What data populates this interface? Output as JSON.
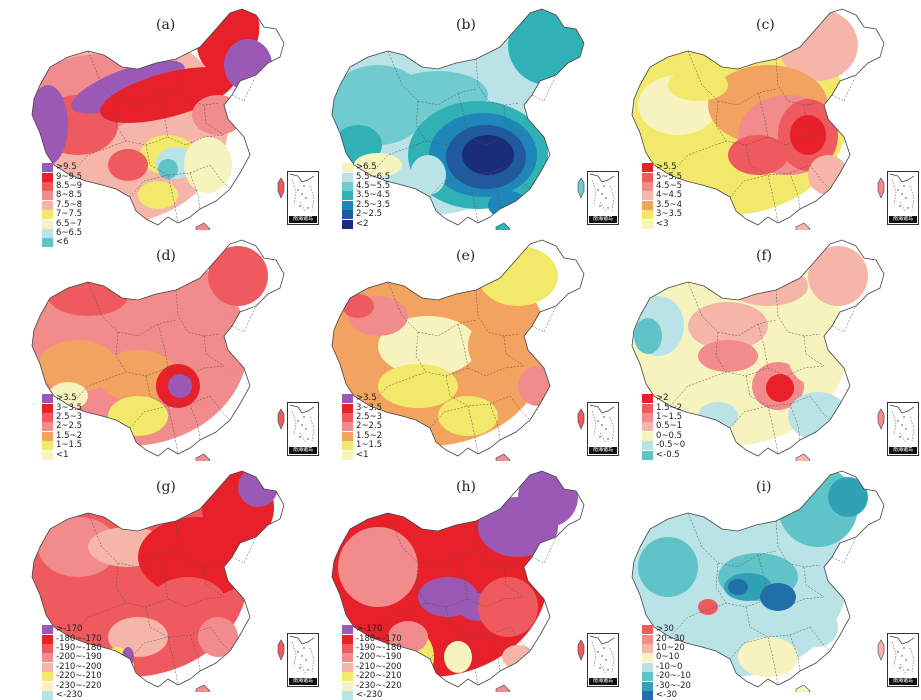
{
  "chart_data": [
    {
      "type": "heatmap",
      "panel": "(a)",
      "palette": "warm",
      "legend": [
        {
          "label": ">9.5",
          "color": "#9b59b6"
        },
        {
          "label": "9~9.5",
          "color": "#e8202a"
        },
        {
          "label": "8.5~9",
          "color": "#ef5a5f"
        },
        {
          "label": "8~8.5",
          "color": "#f28b8b"
        },
        {
          "label": "7.5~8",
          "color": "#f5b5a8"
        },
        {
          "label": "7~7.5",
          "color": "#f2e86a"
        },
        {
          "label": "6.5~7",
          "color": "#f6f3bf"
        },
        {
          "label": "6~6.5",
          "color": "#b9e3e6"
        },
        {
          "label": "<6",
          "color": "#5fc3c8"
        }
      ]
    },
    {
      "type": "heatmap",
      "panel": "(b)",
      "palette": "blue",
      "legend": [
        {
          "label": ">6.5",
          "color": "#f6f3bf"
        },
        {
          "label": "5.5~6.5",
          "color": "#b9e3e6"
        },
        {
          "label": "4.5~5.5",
          "color": "#6fcbd0"
        },
        {
          "label": "3.5~4.5",
          "color": "#2fb1b6"
        },
        {
          "label": "2.5~3.5",
          "color": "#1f86b9"
        },
        {
          "label": "2~2.5",
          "color": "#1f5a9e"
        },
        {
          "label": "<2",
          "color": "#1a2d7a"
        }
      ]
    },
    {
      "type": "heatmap",
      "panel": "(c)",
      "palette": "warm",
      "legend": [
        {
          "label": ">5.5",
          "color": "#e8202a"
        },
        {
          "label": "5~5.5",
          "color": "#ef5a5f"
        },
        {
          "label": "4.5~5",
          "color": "#f28b8b"
        },
        {
          "label": "4~4.5",
          "color": "#f5b5a8"
        },
        {
          "label": "3.5~4",
          "color": "#f2a35f"
        },
        {
          "label": "3~3.5",
          "color": "#f2e86a"
        },
        {
          "label": "<3",
          "color": "#f6f3bf"
        }
      ]
    },
    {
      "type": "heatmap",
      "panel": "(d)",
      "palette": "warm",
      "legend": [
        {
          "label": ">3.5",
          "color": "#9b59b6"
        },
        {
          "label": "3~3.5",
          "color": "#e8202a"
        },
        {
          "label": "2.5~3",
          "color": "#ef5a5f"
        },
        {
          "label": "2~2.5",
          "color": "#f28b8b"
        },
        {
          "label": "1.5~2",
          "color": "#f2a35f"
        },
        {
          "label": "1~1.5",
          "color": "#f2e86a"
        },
        {
          "label": "<1",
          "color": "#f6f3bf"
        }
      ]
    },
    {
      "type": "heatmap",
      "panel": "(e)",
      "palette": "warm",
      "legend": [
        {
          "label": ">3.5",
          "color": "#9b59b6"
        },
        {
          "label": "3~3.5",
          "color": "#e8202a"
        },
        {
          "label": "2.5~3",
          "color": "#ef5a5f"
        },
        {
          "label": "2~2.5",
          "color": "#f28b8b"
        },
        {
          "label": "1.5~2",
          "color": "#f2a35f"
        },
        {
          "label": "1~1.5",
          "color": "#f2e86a"
        },
        {
          "label": "<1",
          "color": "#f6f3bf"
        }
      ]
    },
    {
      "type": "heatmap",
      "panel": "(f)",
      "palette": "diverging",
      "legend": [
        {
          "label": ">2",
          "color": "#e8202a"
        },
        {
          "label": "1.5~2",
          "color": "#ef5a5f"
        },
        {
          "label": "1~1.5",
          "color": "#f28b8b"
        },
        {
          "label": "0.5~1",
          "color": "#f5b5a8"
        },
        {
          "label": "0~0.5",
          "color": "#f6f3bf"
        },
        {
          "label": "-0.5~0",
          "color": "#b9e3e6"
        },
        {
          "label": "<-0.5",
          "color": "#5fc3c8"
        }
      ]
    },
    {
      "type": "heatmap",
      "panel": "(g)",
      "palette": "warm",
      "legend": [
        {
          "label": ">-170",
          "color": "#9b59b6"
        },
        {
          "label": "-180~-170",
          "color": "#e8202a"
        },
        {
          "label": "-190~-180",
          "color": "#ef5a5f"
        },
        {
          "label": "-200~-190",
          "color": "#f28b8b"
        },
        {
          "label": "-210~-200",
          "color": "#f5b5a8"
        },
        {
          "label": "-220~-210",
          "color": "#f2e86a"
        },
        {
          "label": "-230~-220",
          "color": "#f6f3bf"
        },
        {
          "label": "<-230",
          "color": "#b9e3e6"
        }
      ]
    },
    {
      "type": "heatmap",
      "panel": "(h)",
      "palette": "warm",
      "legend": [
        {
          "label": ">-170",
          "color": "#9b59b6"
        },
        {
          "label": "-180~-170",
          "color": "#e8202a"
        },
        {
          "label": "-190~-180",
          "color": "#ef5a5f"
        },
        {
          "label": "-200~-190",
          "color": "#f28b8b"
        },
        {
          "label": "-210~-200",
          "color": "#f5b5a8"
        },
        {
          "label": "-220~-210",
          "color": "#f2e86a"
        },
        {
          "label": "-230~-220",
          "color": "#f6f3bf"
        },
        {
          "label": "<-230",
          "color": "#b9e3e6"
        }
      ]
    },
    {
      "type": "heatmap",
      "panel": "(i)",
      "palette": "diverging",
      "legend": [
        {
          "label": ">30",
          "color": "#ef5a5f"
        },
        {
          "label": "20~30",
          "color": "#f28b8b"
        },
        {
          "label": "10~20",
          "color": "#f5b5a8"
        },
        {
          "label": "0~10",
          "color": "#f6f3bf"
        },
        {
          "label": "-10~0",
          "color": "#b9e3e6"
        },
        {
          "label": "-20~-10",
          "color": "#5fc3c8"
        },
        {
          "label": "-30~-20",
          "color": "#2fa2b5"
        },
        {
          "label": "<-30",
          "color": "#1f6fa8"
        }
      ]
    }
  ],
  "inset_caption": "南海诸岛"
}
